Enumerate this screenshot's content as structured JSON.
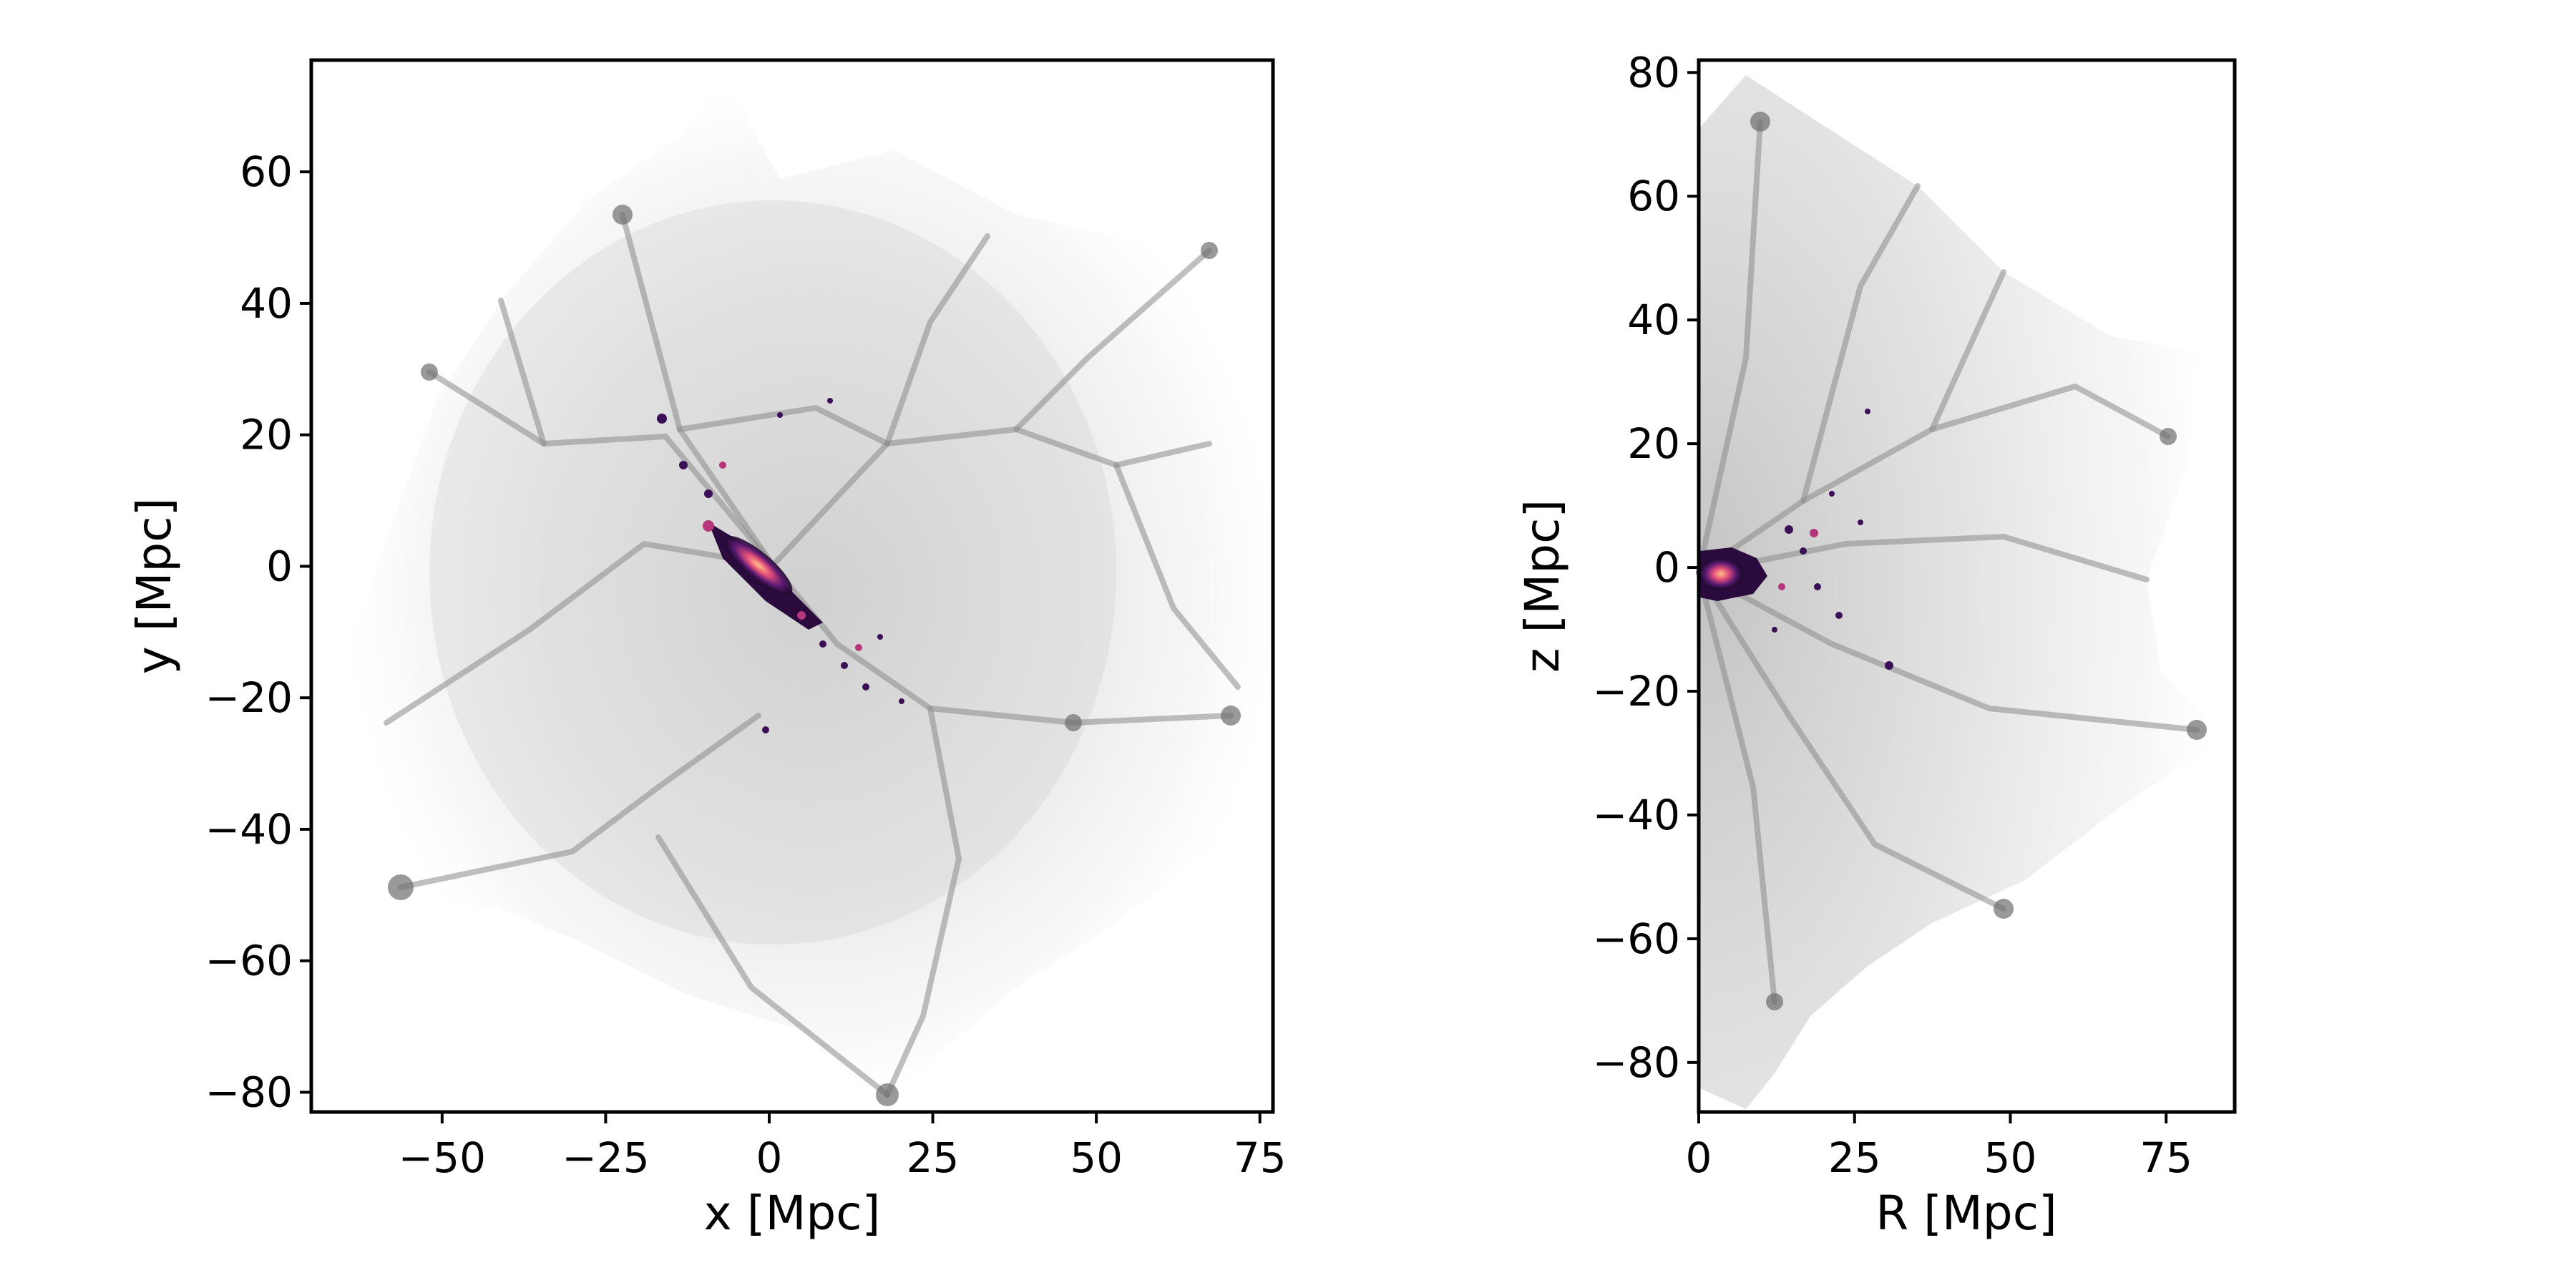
{
  "chart_data": [
    {
      "type": "heatmap",
      "xlabel": "x [Mpc]",
      "ylabel": "y [Mpc]",
      "xlim": [
        -70,
        77
      ],
      "ylim": [
        -83,
        77
      ],
      "xticks": [
        -50,
        -25,
        0,
        25,
        50,
        75
      ],
      "yticks": [
        60,
        40,
        20,
        0,
        -20,
        -40,
        -60,
        -80
      ],
      "xtick_labels": [
        "−50",
        "−25",
        "0",
        "25",
        "50",
        "75"
      ],
      "ytick_labels": [
        "60",
        "40",
        "20",
        "0",
        "−20",
        "−40",
        "−60",
        "−80"
      ],
      "grid": false,
      "layers": [
        "grey density field (cosmic web)",
        "magma-coloured dense core"
      ]
    },
    {
      "type": "heatmap",
      "xlabel": "R [Mpc]",
      "ylabel": "z [Mpc]",
      "xlim": [
        0,
        86
      ],
      "ylim": [
        -88,
        82
      ],
      "xticks": [
        0,
        25,
        50,
        75
      ],
      "yticks": [
        80,
        60,
        40,
        20,
        0,
        -20,
        -40,
        -60,
        -80
      ],
      "xtick_labels": [
        "0",
        "25",
        "50",
        "75"
      ],
      "ytick_labels": [
        "80",
        "60",
        "40",
        "20",
        "0",
        "−20",
        "−40",
        "−60",
        "−80"
      ],
      "grid": false,
      "layers": [
        "grey density field (cosmic web)",
        "magma-coloured dense core"
      ]
    }
  ],
  "colors": {
    "background": "#ffffff",
    "axes": "#000000",
    "density_light": "#e8e8e8",
    "density_dark": "#5a5a5a",
    "core_low": "#2b0a3d",
    "core_mid": "#b5367a",
    "core_high": "#fec287"
  }
}
